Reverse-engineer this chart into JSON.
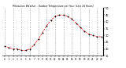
{
  "title": "Milwaukee Weather - Outdoor Temperature per Hour (Last 24 Hours)",
  "hours": [
    0,
    1,
    2,
    3,
    4,
    5,
    6,
    7,
    8,
    9,
    10,
    11,
    12,
    13,
    14,
    15,
    16,
    17,
    18,
    19,
    20,
    21,
    22,
    23
  ],
  "temps": [
    22,
    21,
    20,
    20,
    19,
    19,
    20,
    23,
    27,
    32,
    37,
    41,
    44,
    45,
    45,
    44,
    42,
    39,
    36,
    33,
    31,
    30,
    29,
    29
  ],
  "line_color": "#dd0000",
  "marker_color": "#000000",
  "grid_color": "#888888",
  "bg_color": "#ffffff",
  "ylim_min": 15,
  "ylim_max": 50,
  "ytick_values": [
    15,
    20,
    25,
    30,
    35,
    40,
    45,
    50
  ],
  "ytick_labels": [
    "15",
    "20",
    "25",
    "30",
    "35",
    "40",
    "45",
    "50"
  ],
  "xtick_step": 1
}
